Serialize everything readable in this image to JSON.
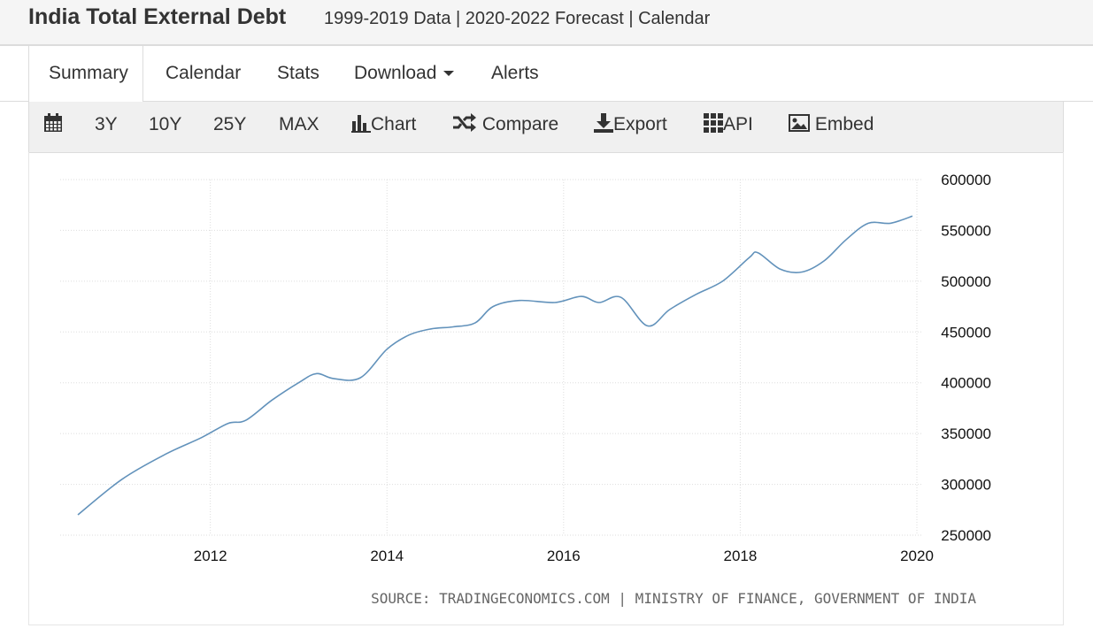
{
  "header": {
    "title": "India Total External Debt",
    "subtitle": "1999-2019 Data | 2020-2022 Forecast | Calendar"
  },
  "tabs": [
    {
      "label": "Summary"
    },
    {
      "label": "Calendar"
    },
    {
      "label": "Stats"
    },
    {
      "label": "Download"
    },
    {
      "label": "Alerts"
    }
  ],
  "toolbar": {
    "ranges": [
      "3Y",
      "10Y",
      "25Y",
      "MAX"
    ],
    "chart_label": "Chart",
    "compare_label": "Compare",
    "export_label": "Export",
    "api_label": "API",
    "embed_label": "Embed"
  },
  "chart_data": {
    "type": "line",
    "title": "",
    "xlabel": "",
    "ylabel": "",
    "x_ticks": [
      "2012",
      "2014",
      "2016",
      "2018",
      "2020"
    ],
    "y_ticks": [
      "600000",
      "550000",
      "500000",
      "450000",
      "400000",
      "350000",
      "300000",
      "250000"
    ],
    "xlim": [
      2010.3,
      2020.05
    ],
    "ylim": [
      250000,
      600000
    ],
    "grid": true,
    "line_color": "#6292bb",
    "series": [
      {
        "x": [
          2010.5,
          2011.0,
          2011.5,
          2011.9,
          2012.2,
          2012.4,
          2012.7,
          2013.0,
          2013.2,
          2013.4,
          2013.7,
          2014.0,
          2014.25,
          2014.5,
          2014.75,
          2015.0,
          2015.2,
          2015.5,
          2015.9,
          2016.2,
          2016.4,
          2016.65,
          2016.95,
          2017.2,
          2017.5,
          2017.8,
          2018.1,
          2018.2,
          2018.45,
          2018.7,
          2018.95,
          2019.2,
          2019.45,
          2019.7,
          2019.95
        ],
        "y": [
          270000,
          305000,
          330000,
          346000,
          360000,
          363000,
          383000,
          400000,
          409000,
          404000,
          405000,
          433000,
          447000,
          453000,
          455000,
          459000,
          475000,
          481000,
          479000,
          485000,
          479000,
          484000,
          456000,
          472000,
          487000,
          500000,
          523000,
          528000,
          512000,
          509000,
          520000,
          541000,
          557000,
          557000,
          564000
        ]
      }
    ]
  },
  "source_text": "SOURCE: TRADINGECONOMICS.COM | MINISTRY OF FINANCE, GOVERNMENT OF INDIA"
}
